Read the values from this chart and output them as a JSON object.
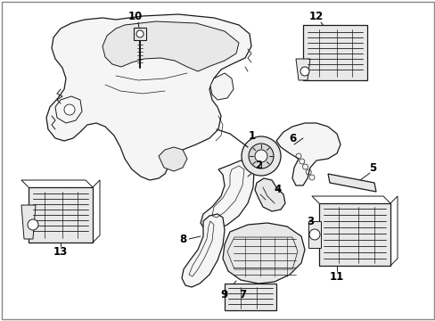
{
  "background_color": "#ffffff",
  "line_color": "#1a1a1a",
  "label_color": "#000000",
  "figsize": [
    4.89,
    3.6
  ],
  "dpi": 100,
  "border_color": "#cccccc",
  "fill_light": "#f5f5f5",
  "fill_medium": "#e8e8e8",
  "fill_dark": "#d8d8d8"
}
